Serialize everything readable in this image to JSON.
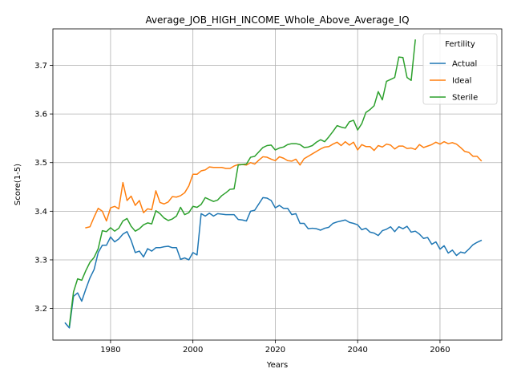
{
  "chart_data": {
    "type": "line",
    "title": "Average_JOB_HIGH_INCOME_Whole_Above_Average_IQ",
    "xlabel": "Years",
    "ylabel": "Score(1-5)",
    "xlim": [
      1966,
      2075
    ],
    "ylim": [
      3.135,
      3.775
    ],
    "xticks": [
      1980,
      2000,
      2020,
      2040,
      2060
    ],
    "yticks": [
      3.2,
      3.3,
      3.4,
      3.5,
      3.6,
      3.7
    ],
    "grid": true,
    "legend": {
      "title": "Fertility",
      "position": "top-right"
    },
    "series": [
      {
        "name": "Actual",
        "color": "#1f77b4",
        "points": [
          [
            1969,
            3.17
          ],
          [
            1970,
            3.16
          ],
          [
            1971,
            3.225
          ],
          [
            1972,
            3.232
          ],
          [
            1973,
            3.215
          ],
          [
            1974,
            3.24
          ],
          [
            1975,
            3.263
          ],
          [
            1976,
            3.28
          ],
          [
            1977,
            3.315
          ],
          [
            1978,
            3.33
          ],
          [
            1979,
            3.33
          ],
          [
            1980,
            3.347
          ],
          [
            1981,
            3.337
          ],
          [
            1982,
            3.343
          ],
          [
            1983,
            3.353
          ],
          [
            1984,
            3.358
          ],
          [
            1985,
            3.34
          ],
          [
            1986,
            3.315
          ],
          [
            1987,
            3.318
          ],
          [
            1988,
            3.306
          ],
          [
            1989,
            3.323
          ],
          [
            1990,
            3.318
          ],
          [
            1991,
            3.325
          ],
          [
            1992,
            3.325
          ],
          [
            1993,
            3.327
          ],
          [
            1994,
            3.328
          ],
          [
            1995,
            3.325
          ],
          [
            1996,
            3.325
          ],
          [
            1997,
            3.301
          ],
          [
            1998,
            3.304
          ],
          [
            1999,
            3.3
          ],
          [
            2000,
            3.315
          ],
          [
            2001,
            3.31
          ],
          [
            2002,
            3.395
          ],
          [
            2003,
            3.39
          ],
          [
            2004,
            3.396
          ],
          [
            2005,
            3.39
          ],
          [
            2006,
            3.395
          ],
          [
            2007,
            3.394
          ],
          [
            2008,
            3.393
          ],
          [
            2009,
            3.393
          ],
          [
            2010,
            3.393
          ],
          [
            2011,
            3.383
          ],
          [
            2012,
            3.382
          ],
          [
            2013,
            3.38
          ],
          [
            2014,
            3.4
          ],
          [
            2015,
            3.402
          ],
          [
            2016,
            3.415
          ],
          [
            2017,
            3.428
          ],
          [
            2018,
            3.427
          ],
          [
            2019,
            3.422
          ],
          [
            2020,
            3.407
          ],
          [
            2021,
            3.412
          ],
          [
            2022,
            3.406
          ],
          [
            2023,
            3.406
          ],
          [
            2024,
            3.393
          ],
          [
            2025,
            3.395
          ],
          [
            2026,
            3.375
          ],
          [
            2027,
            3.375
          ],
          [
            2028,
            3.364
          ],
          [
            2029,
            3.365
          ],
          [
            2030,
            3.364
          ],
          [
            2031,
            3.361
          ],
          [
            2032,
            3.365
          ],
          [
            2033,
            3.367
          ],
          [
            2034,
            3.375
          ],
          [
            2035,
            3.378
          ],
          [
            2036,
            3.38
          ],
          [
            2037,
            3.382
          ],
          [
            2038,
            3.377
          ],
          [
            2039,
            3.375
          ],
          [
            2040,
            3.372
          ],
          [
            2041,
            3.362
          ],
          [
            2042,
            3.365
          ],
          [
            2043,
            3.357
          ],
          [
            2044,
            3.355
          ],
          [
            2045,
            3.35
          ],
          [
            2046,
            3.36
          ],
          [
            2047,
            3.363
          ],
          [
            2048,
            3.368
          ],
          [
            2049,
            3.358
          ],
          [
            2050,
            3.368
          ],
          [
            2051,
            3.364
          ],
          [
            2052,
            3.369
          ],
          [
            2053,
            3.357
          ],
          [
            2054,
            3.359
          ],
          [
            2055,
            3.353
          ],
          [
            2056,
            3.344
          ],
          [
            2057,
            3.346
          ],
          [
            2058,
            3.332
          ],
          [
            2059,
            3.337
          ],
          [
            2060,
            3.322
          ],
          [
            2061,
            3.329
          ],
          [
            2062,
            3.314
          ],
          [
            2063,
            3.32
          ],
          [
            2064,
            3.309
          ],
          [
            2065,
            3.316
          ],
          [
            2066,
            3.314
          ],
          [
            2067,
            3.322
          ],
          [
            2068,
            3.331
          ],
          [
            2069,
            3.336
          ],
          [
            2070,
            3.34
          ]
        ]
      },
      {
        "name": "Ideal",
        "color": "#ff7f0e",
        "points": [
          [
            1974,
            3.366
          ],
          [
            1975,
            3.368
          ],
          [
            1976,
            3.388
          ],
          [
            1977,
            3.406
          ],
          [
            1978,
            3.4
          ],
          [
            1979,
            3.38
          ],
          [
            1980,
            3.407
          ],
          [
            1981,
            3.41
          ],
          [
            1982,
            3.405
          ],
          [
            1983,
            3.459
          ],
          [
            1984,
            3.422
          ],
          [
            1985,
            3.431
          ],
          [
            1986,
            3.412
          ],
          [
            1987,
            3.422
          ],
          [
            1988,
            3.397
          ],
          [
            1989,
            3.405
          ],
          [
            1990,
            3.403
          ],
          [
            1991,
            3.442
          ],
          [
            1992,
            3.418
          ],
          [
            1993,
            3.415
          ],
          [
            1994,
            3.419
          ],
          [
            1995,
            3.43
          ],
          [
            1996,
            3.429
          ],
          [
            1997,
            3.432
          ],
          [
            1998,
            3.438
          ],
          [
            1999,
            3.452
          ],
          [
            2000,
            3.476
          ],
          [
            2001,
            3.476
          ],
          [
            2002,
            3.483
          ],
          [
            2003,
            3.485
          ],
          [
            2004,
            3.491
          ],
          [
            2005,
            3.49
          ],
          [
            2006,
            3.49
          ],
          [
            2007,
            3.49
          ],
          [
            2008,
            3.488
          ],
          [
            2009,
            3.488
          ],
          [
            2010,
            3.493
          ],
          [
            2011,
            3.496
          ],
          [
            2012,
            3.496
          ],
          [
            2013,
            3.495
          ],
          [
            2014,
            3.5
          ],
          [
            2015,
            3.497
          ],
          [
            2016,
            3.505
          ],
          [
            2017,
            3.512
          ],
          [
            2018,
            3.511
          ],
          [
            2019,
            3.507
          ],
          [
            2020,
            3.504
          ],
          [
            2021,
            3.512
          ],
          [
            2022,
            3.509
          ],
          [
            2023,
            3.504
          ],
          [
            2024,
            3.503
          ],
          [
            2025,
            3.507
          ],
          [
            2026,
            3.495
          ],
          [
            2027,
            3.508
          ],
          [
            2028,
            3.513
          ],
          [
            2029,
            3.518
          ],
          [
            2030,
            3.523
          ],
          [
            2031,
            3.528
          ],
          [
            2032,
            3.532
          ],
          [
            2033,
            3.533
          ],
          [
            2034,
            3.538
          ],
          [
            2035,
            3.542
          ],
          [
            2036,
            3.535
          ],
          [
            2037,
            3.543
          ],
          [
            2038,
            3.536
          ],
          [
            2039,
            3.542
          ],
          [
            2040,
            3.526
          ],
          [
            2041,
            3.537
          ],
          [
            2042,
            3.533
          ],
          [
            2043,
            3.533
          ],
          [
            2044,
            3.525
          ],
          [
            2045,
            3.535
          ],
          [
            2046,
            3.532
          ],
          [
            2047,
            3.538
          ],
          [
            2048,
            3.536
          ],
          [
            2049,
            3.528
          ],
          [
            2050,
            3.534
          ],
          [
            2051,
            3.534
          ],
          [
            2052,
            3.529
          ],
          [
            2053,
            3.53
          ],
          [
            2054,
            3.527
          ],
          [
            2055,
            3.537
          ],
          [
            2056,
            3.531
          ],
          [
            2057,
            3.534
          ],
          [
            2058,
            3.537
          ],
          [
            2059,
            3.542
          ],
          [
            2060,
            3.538
          ],
          [
            2061,
            3.543
          ],
          [
            2062,
            3.539
          ],
          [
            2063,
            3.541
          ],
          [
            2064,
            3.538
          ],
          [
            2065,
            3.531
          ],
          [
            2066,
            3.523
          ],
          [
            2067,
            3.521
          ],
          [
            2068,
            3.513
          ],
          [
            2069,
            3.513
          ],
          [
            2070,
            3.504
          ]
        ]
      },
      {
        "name": "Sterile",
        "color": "#2ca02c",
        "points": [
          [
            1970,
            3.165
          ],
          [
            1971,
            3.234
          ],
          [
            1972,
            3.261
          ],
          [
            1973,
            3.258
          ],
          [
            1974,
            3.278
          ],
          [
            1975,
            3.295
          ],
          [
            1976,
            3.305
          ],
          [
            1977,
            3.323
          ],
          [
            1978,
            3.36
          ],
          [
            1979,
            3.358
          ],
          [
            1980,
            3.366
          ],
          [
            1981,
            3.359
          ],
          [
            1982,
            3.365
          ],
          [
            1983,
            3.38
          ],
          [
            1984,
            3.385
          ],
          [
            1985,
            3.369
          ],
          [
            1986,
            3.359
          ],
          [
            1987,
            3.364
          ],
          [
            1988,
            3.372
          ],
          [
            1989,
            3.376
          ],
          [
            1990,
            3.374
          ],
          [
            1991,
            3.401
          ],
          [
            1992,
            3.395
          ],
          [
            1993,
            3.386
          ],
          [
            1994,
            3.381
          ],
          [
            1995,
            3.384
          ],
          [
            1996,
            3.39
          ],
          [
            1997,
            3.408
          ],
          [
            1998,
            3.393
          ],
          [
            1999,
            3.397
          ],
          [
            2000,
            3.41
          ],
          [
            2001,
            3.408
          ],
          [
            2002,
            3.414
          ],
          [
            2003,
            3.428
          ],
          [
            2004,
            3.424
          ],
          [
            2005,
            3.42
          ],
          [
            2006,
            3.423
          ],
          [
            2007,
            3.432
          ],
          [
            2008,
            3.438
          ],
          [
            2009,
            3.445
          ],
          [
            2010,
            3.446
          ],
          [
            2011,
            3.495
          ],
          [
            2012,
            3.496
          ],
          [
            2013,
            3.497
          ],
          [
            2014,
            3.511
          ],
          [
            2015,
            3.513
          ],
          [
            2016,
            3.522
          ],
          [
            2017,
            3.531
          ],
          [
            2018,
            3.535
          ],
          [
            2019,
            3.536
          ],
          [
            2020,
            3.526
          ],
          [
            2021,
            3.53
          ],
          [
            2022,
            3.532
          ],
          [
            2023,
            3.537
          ],
          [
            2024,
            3.539
          ],
          [
            2025,
            3.539
          ],
          [
            2026,
            3.537
          ],
          [
            2027,
            3.531
          ],
          [
            2028,
            3.532
          ],
          [
            2029,
            3.535
          ],
          [
            2030,
            3.542
          ],
          [
            2031,
            3.547
          ],
          [
            2032,
            3.543
          ],
          [
            2033,
            3.553
          ],
          [
            2034,
            3.564
          ],
          [
            2035,
            3.576
          ],
          [
            2036,
            3.573
          ],
          [
            2037,
            3.571
          ],
          [
            2038,
            3.584
          ],
          [
            2039,
            3.587
          ],
          [
            2040,
            3.567
          ],
          [
            2041,
            3.58
          ],
          [
            2042,
            3.603
          ],
          [
            2043,
            3.609
          ],
          [
            2044,
            3.617
          ],
          [
            2045,
            3.646
          ],
          [
            2046,
            3.629
          ],
          [
            2047,
            3.667
          ],
          [
            2048,
            3.671
          ],
          [
            2049,
            3.675
          ],
          [
            2050,
            3.717
          ],
          [
            2051,
            3.716
          ],
          [
            2052,
            3.675
          ],
          [
            2053,
            3.669
          ],
          [
            2054,
            3.752
          ]
        ]
      }
    ]
  }
}
